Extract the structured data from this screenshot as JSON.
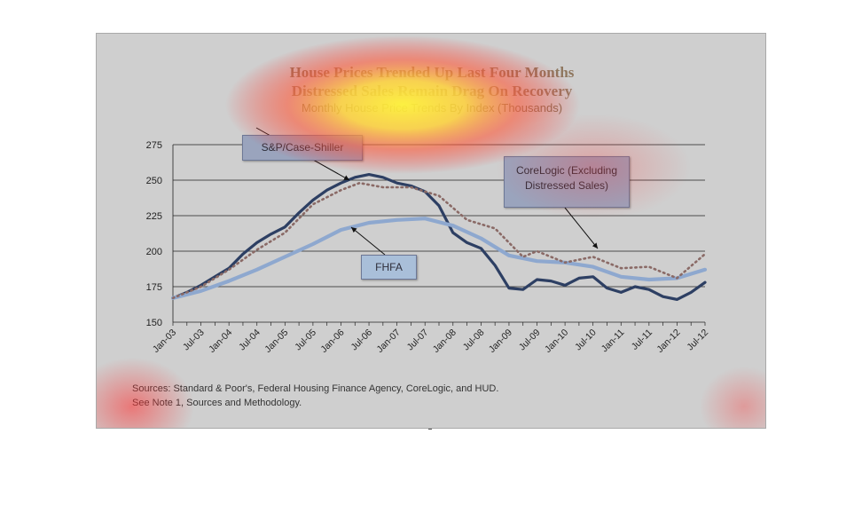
{
  "chart": {
    "title_line1": "House Prices Trended Up Last Four Months",
    "title_line2": "Distressed Sales Remain Drag On Recovery",
    "title_line3": "Monthly House Price Trends By Index (Thousands)",
    "sources_line1": "Sources:  Standard & Poor's, Federal Housing Finance Agency, CoreLogic, and HUD.",
    "sources_line2": "See Note 1, Sources and Methodology."
  },
  "callouts": {
    "sp": "S&P/Case-Shiller",
    "fhfa": "FHFA",
    "core_line1": "CoreLogic (Excluding",
    "core_line2": "Distressed Sales)"
  },
  "chart_data": {
    "type": "line",
    "title": "House Prices Trended Up Last Four Months Distressed Sales Remain Drag On Recovery",
    "subtitle": "Monthly House Price Trends By Index (Thousands)",
    "xlabel": "",
    "ylabel": "",
    "ylim": [
      150,
      275
    ],
    "yticks": [
      150,
      175,
      200,
      225,
      250,
      275
    ],
    "xticks": [
      "Jan-03",
      "Jul-03",
      "Jan-04",
      "Jul-04",
      "Jan-05",
      "Jul-05",
      "Jan-06",
      "Jul-06",
      "Jan-07",
      "Jul-07",
      "Jan-08",
      "Jul-08",
      "Jan-09",
      "Jul-09",
      "Jan-10",
      "Jul-10",
      "Jan-11",
      "Jul-11",
      "Jan-12",
      "Jul-12"
    ],
    "grid": true,
    "legend": "none",
    "series": [
      {
        "name": "S&P/Case-Shiller",
        "color": "#2d3f63",
        "style": "solid",
        "values": [
          [
            0,
            167
          ],
          [
            3,
            171
          ],
          [
            6,
            176
          ],
          [
            9,
            182
          ],
          [
            12,
            188
          ],
          [
            15,
            198
          ],
          [
            18,
            206
          ],
          [
            21,
            212
          ],
          [
            24,
            217
          ],
          [
            27,
            227
          ],
          [
            30,
            236
          ],
          [
            33,
            243
          ],
          [
            36,
            248
          ],
          [
            39,
            252
          ],
          [
            42,
            254
          ],
          [
            45,
            252
          ],
          [
            48,
            248
          ],
          [
            51,
            246
          ],
          [
            54,
            242
          ],
          [
            57,
            232
          ],
          [
            60,
            213
          ],
          [
            63,
            206
          ],
          [
            66,
            202
          ],
          [
            69,
            190
          ],
          [
            72,
            174
          ],
          [
            75,
            173
          ],
          [
            78,
            180
          ],
          [
            81,
            179
          ],
          [
            84,
            176
          ],
          [
            87,
            181
          ],
          [
            90,
            182
          ],
          [
            93,
            174
          ],
          [
            96,
            171
          ],
          [
            99,
            175
          ],
          [
            102,
            173
          ],
          [
            105,
            168
          ],
          [
            108,
            166
          ],
          [
            111,
            171
          ],
          [
            114,
            178
          ]
        ]
      },
      {
        "name": "FHFA",
        "color": "#8ea8cf",
        "style": "solid",
        "values": [
          [
            0,
            167
          ],
          [
            6,
            172
          ],
          [
            12,
            179
          ],
          [
            18,
            187
          ],
          [
            24,
            196
          ],
          [
            30,
            205
          ],
          [
            36,
            215
          ],
          [
            42,
            220
          ],
          [
            48,
            222
          ],
          [
            54,
            223
          ],
          [
            60,
            218
          ],
          [
            66,
            209
          ],
          [
            72,
            197
          ],
          [
            78,
            193
          ],
          [
            84,
            192
          ],
          [
            90,
            189
          ],
          [
            96,
            182
          ],
          [
            102,
            180
          ],
          [
            108,
            181
          ],
          [
            114,
            187
          ]
        ]
      },
      {
        "name": "CoreLogic (Excluding Distressed Sales)",
        "color": "#8a6a66",
        "style": "dotted",
        "values": [
          [
            0,
            167
          ],
          [
            6,
            175
          ],
          [
            12,
            187
          ],
          [
            18,
            201
          ],
          [
            24,
            213
          ],
          [
            30,
            233
          ],
          [
            36,
            243
          ],
          [
            40,
            248
          ],
          [
            45,
            245
          ],
          [
            51,
            245
          ],
          [
            57,
            239
          ],
          [
            63,
            222
          ],
          [
            69,
            216
          ],
          [
            75,
            196
          ],
          [
            78,
            200
          ],
          [
            84,
            192
          ],
          [
            90,
            196
          ],
          [
            96,
            188
          ],
          [
            102,
            189
          ],
          [
            108,
            181
          ],
          [
            114,
            198
          ]
        ]
      }
    ]
  }
}
